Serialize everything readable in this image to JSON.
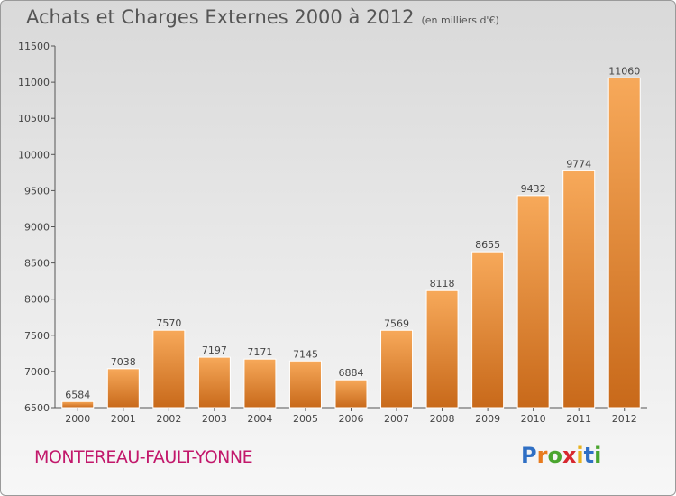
{
  "header": {
    "title": "Achats et Charges Externes 2000 à 2012",
    "subtitle": "(en milliers d'€)"
  },
  "footer": {
    "city": "MONTEREAU-FAULT-YONNE",
    "logo_letters": [
      "P",
      "r",
      "o",
      "x",
      "i",
      "t",
      "i"
    ],
    "logo_colors": [
      "#2f6fc4",
      "#e87b1e",
      "#4aa52e",
      "#d7282f",
      "#e8b21e",
      "#2f6fc4",
      "#4aa52e"
    ]
  },
  "chart_data": {
    "type": "bar",
    "title": "Achats et Charges Externes 2000 à 2012",
    "subtitle": "(en milliers d'€)",
    "categories": [
      "2000",
      "2001",
      "2002",
      "2003",
      "2004",
      "2005",
      "2006",
      "2007",
      "2008",
      "2009",
      "2010",
      "2011",
      "2012"
    ],
    "values": [
      6584,
      7038,
      7570,
      7197,
      7171,
      7145,
      6884,
      7569,
      8118,
      8655,
      9432,
      9774,
      11060
    ],
    "ylim": [
      6500,
      11500
    ],
    "yticks": [
      6500,
      7000,
      7500,
      8000,
      8500,
      9000,
      9500,
      10000,
      10500,
      11000,
      11500
    ],
    "grid": false,
    "bar_color_light": "#f7a95a",
    "bar_color_dark": "#c8691a",
    "label_color": "#444444"
  }
}
